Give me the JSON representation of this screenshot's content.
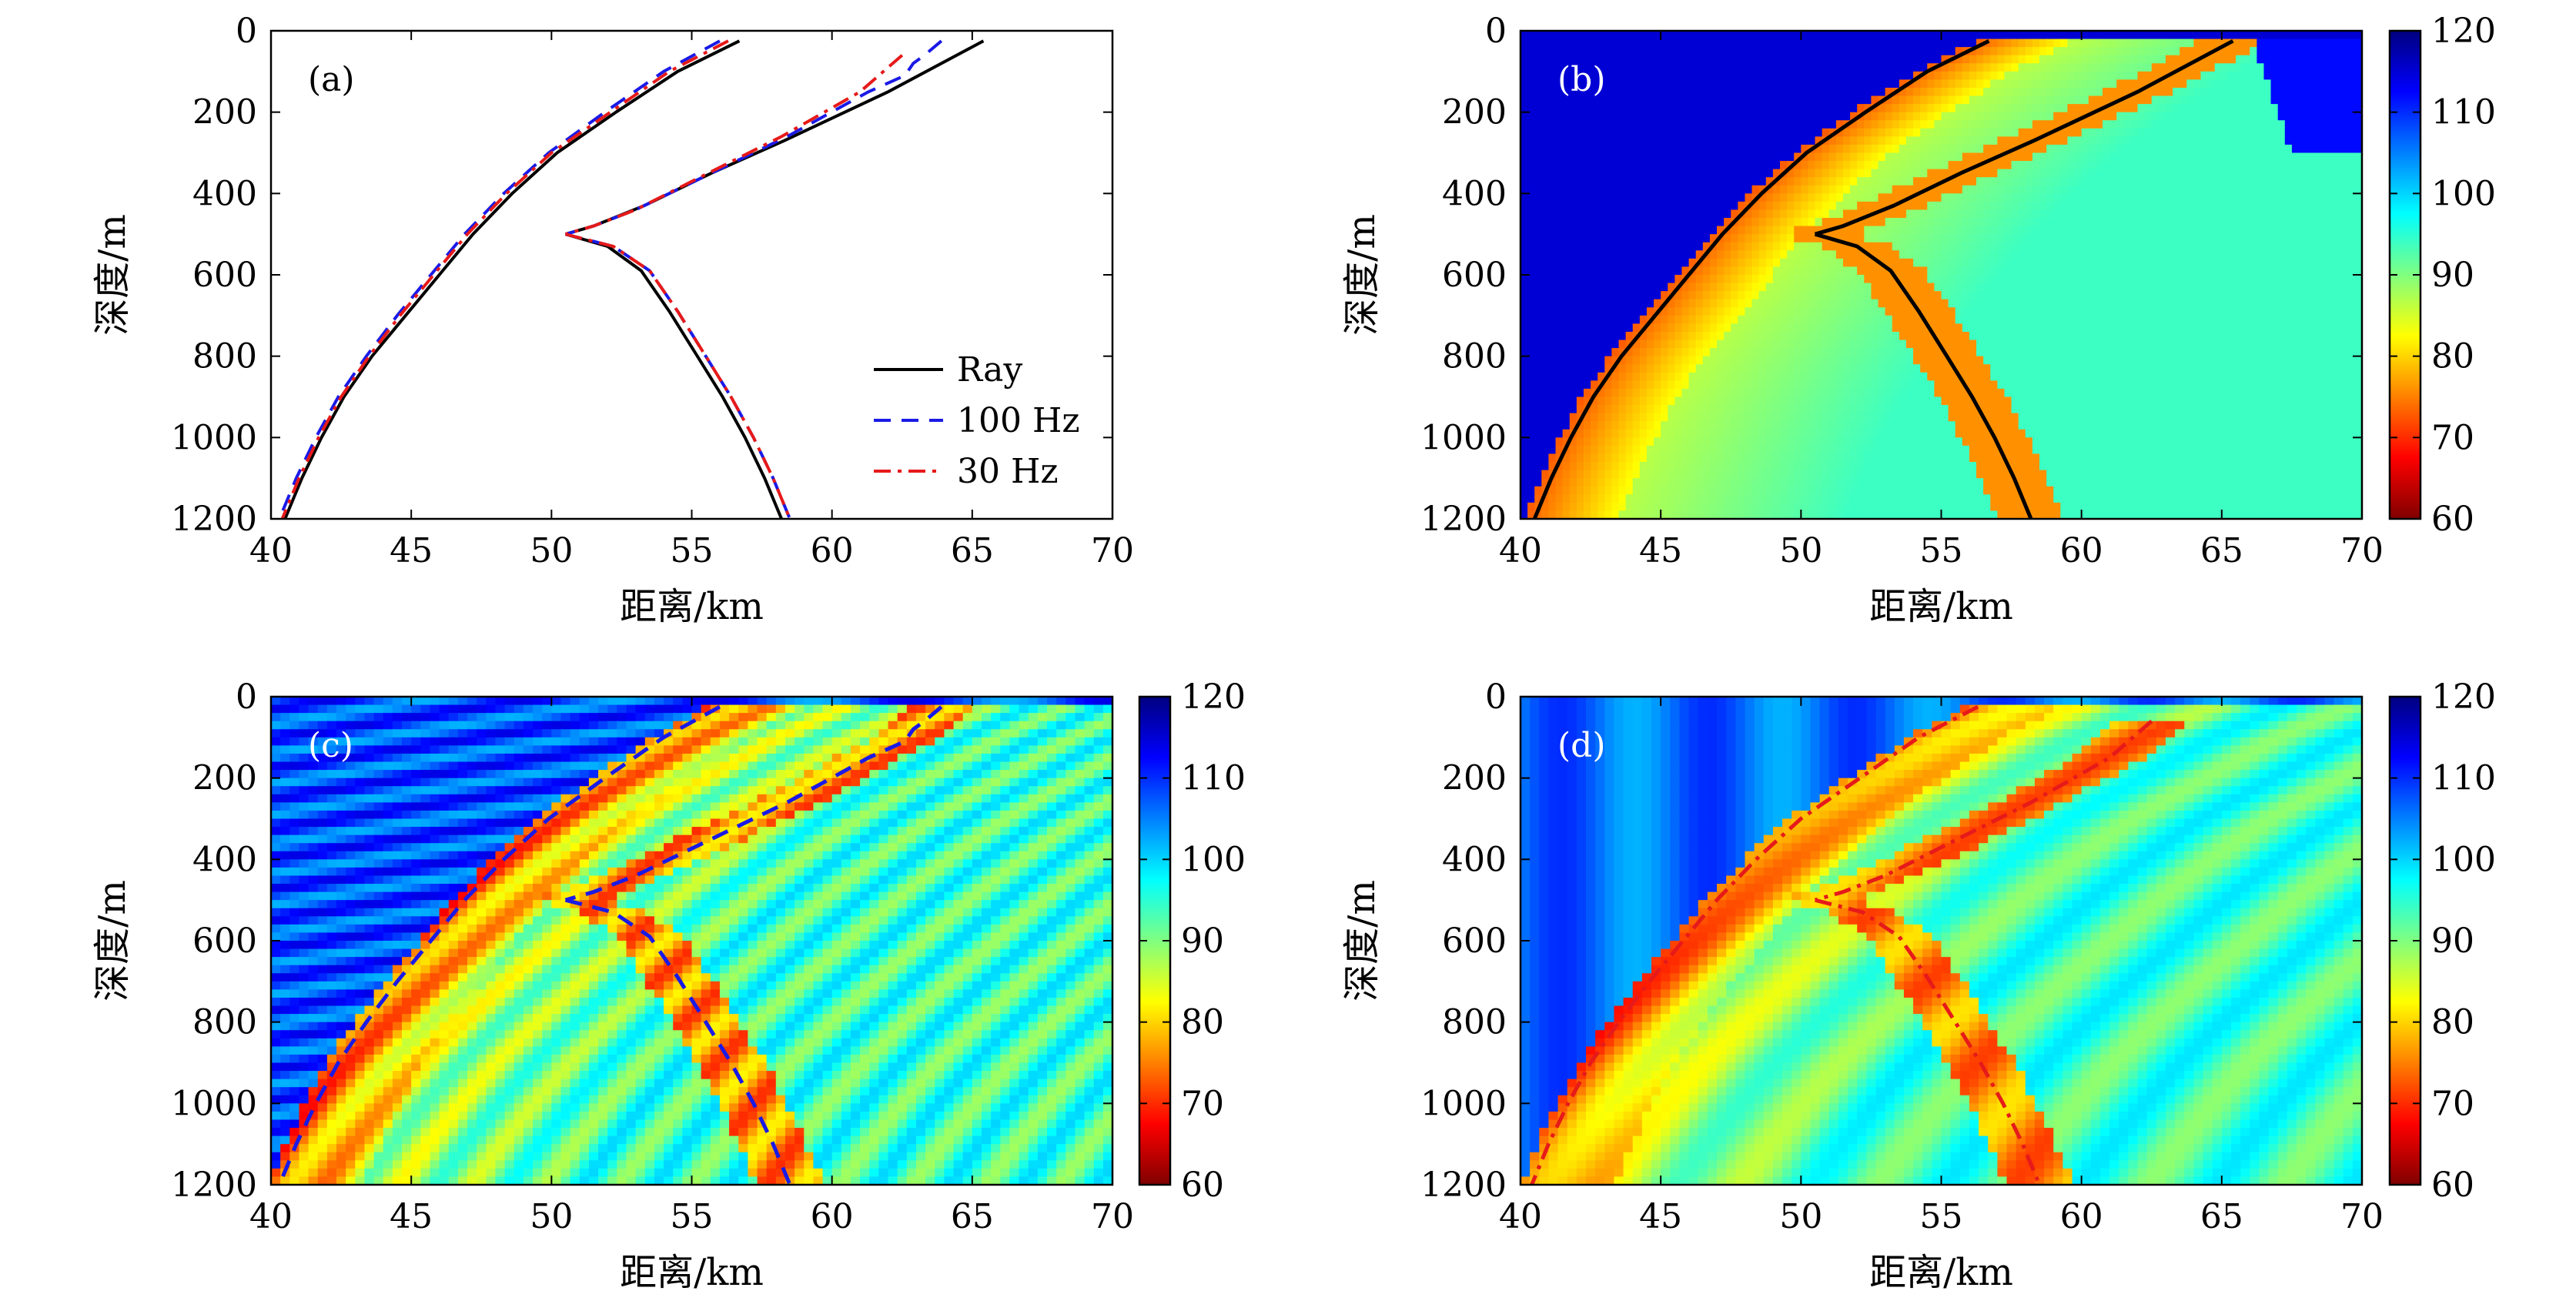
{
  "chart_data": [
    {
      "id": "a",
      "type": "line",
      "panel_label": "(a)",
      "xlabel": "距离/km",
      "ylabel": "深度/m",
      "xlim": [
        40,
        70
      ],
      "ylim": [
        1200,
        0
      ],
      "y_inverted": true,
      "xticks": [
        "40",
        "45",
        "50",
        "55",
        "60",
        "65",
        "70"
      ],
      "yticks": [
        "0",
        "200",
        "400",
        "600",
        "800",
        "1000",
        "1200"
      ],
      "legend": {
        "placement": "bottom-right",
        "entries": [
          "Ray",
          "100 Hz",
          "30 Hz"
        ]
      },
      "series": [
        {
          "name": "Ray",
          "style": "solid",
          "color": "#000000",
          "branches": [
            [
              [
                56.7,
                25
              ],
              [
                54.5,
                100
              ],
              [
                52.3,
                200
              ],
              [
                50.2,
                300
              ],
              [
                48.6,
                400
              ],
              [
                47.2,
                500
              ],
              [
                46.0,
                600
              ],
              [
                44.8,
                700
              ],
              [
                43.6,
                800
              ],
              [
                42.6,
                900
              ],
              [
                41.8,
                1000
              ],
              [
                41.1,
                1100
              ],
              [
                40.5,
                1200
              ]
            ],
            [
              [
                65.4,
                25
              ],
              [
                62.0,
                150
              ],
              [
                58.3,
                270
              ],
              [
                55.7,
                350
              ],
              [
                53.3,
                430
              ],
              [
                51.5,
                480
              ],
              [
                50.5,
                500
              ]
            ],
            [
              [
                50.5,
                500
              ],
              [
                52.0,
                530
              ],
              [
                53.2,
                590
              ],
              [
                54.2,
                690
              ],
              [
                55.2,
                800
              ],
              [
                56.1,
                900
              ],
              [
                56.9,
                1000
              ],
              [
                57.6,
                1100
              ],
              [
                58.2,
                1200
              ]
            ]
          ]
        },
        {
          "name": "100 Hz",
          "style": "dashed",
          "color": "#1a1ae6",
          "branches": [
            [
              [
                56.0,
                25
              ],
              [
                54.0,
                100
              ],
              [
                51.9,
                200
              ],
              [
                49.9,
                300
              ],
              [
                48.3,
                400
              ],
              [
                46.9,
                500
              ],
              [
                45.7,
                600
              ],
              [
                44.5,
                700
              ],
              [
                43.4,
                800
              ],
              [
                42.4,
                900
              ],
              [
                41.6,
                1000
              ],
              [
                40.9,
                1100
              ],
              [
                40.3,
                1200
              ]
            ],
            [
              [
                63.9,
                25
              ],
              [
                63.3,
                60
              ],
              [
                62.9,
                80
              ],
              [
                62.6,
                110
              ],
              [
                61.3,
                150
              ],
              [
                58.4,
                260
              ],
              [
                55.4,
                360
              ],
              [
                53.0,
                440
              ],
              [
                51.5,
                480
              ],
              [
                50.5,
                500
              ]
            ],
            [
              [
                50.5,
                500
              ],
              [
                52.2,
                530
              ],
              [
                53.5,
                590
              ],
              [
                54.5,
                690
              ],
              [
                55.5,
                800
              ],
              [
                56.4,
                900
              ],
              [
                57.2,
                1000
              ],
              [
                57.9,
                1100
              ],
              [
                58.5,
                1200
              ]
            ]
          ]
        },
        {
          "name": "30 Hz",
          "style": "dash-dot",
          "color": "#e61a1a",
          "branches": [
            [
              [
                56.3,
                25
              ],
              [
                54.2,
                100
              ],
              [
                52.1,
                200
              ],
              [
                50.0,
                300
              ],
              [
                48.4,
                400
              ],
              [
                47.0,
                500
              ],
              [
                45.8,
                600
              ],
              [
                44.6,
                700
              ],
              [
                43.5,
                800
              ],
              [
                42.5,
                900
              ],
              [
                41.7,
                1000
              ],
              [
                41.0,
                1100
              ],
              [
                40.4,
                1200
              ]
            ],
            [
              [
                62.5,
                60
              ],
              [
                61.0,
                150
              ],
              [
                58.2,
                260
              ],
              [
                55.3,
                360
              ],
              [
                53.0,
                440
              ],
              [
                51.5,
                480
              ],
              [
                50.5,
                500
              ]
            ],
            [
              [
                50.5,
                500
              ],
              [
                52.2,
                530
              ],
              [
                53.5,
                590
              ],
              [
                54.5,
                690
              ],
              [
                55.5,
                800
              ],
              [
                56.4,
                900
              ],
              [
                57.2,
                1000
              ],
              [
                57.9,
                1100
              ],
              [
                58.5,
                1200
              ]
            ]
          ]
        }
      ]
    },
    {
      "id": "b",
      "type": "heatmap",
      "panel_label": "(b)",
      "xlabel": "距离/km",
      "ylabel": "深度/m",
      "xlim": [
        40,
        70
      ],
      "ylim": [
        1200,
        0
      ],
      "xticks": [
        "40",
        "45",
        "50",
        "55",
        "60",
        "65",
        "70"
      ],
      "yticks": [
        "0",
        "200",
        "400",
        "600",
        "800",
        "1000",
        "1200"
      ],
      "colorbar": {
        "min": 60,
        "max": 120,
        "ticks": [
          "60",
          "70",
          "80",
          "90",
          "100",
          "110",
          "120"
        ],
        "colormap": "jet-reversed"
      },
      "overlay": {
        "series": "Ray",
        "style": "solid",
        "color": "#000000"
      }
    },
    {
      "id": "c",
      "type": "heatmap",
      "panel_label": "(c)",
      "xlabel": "距离/km",
      "ylabel": "深度/m",
      "xlim": [
        40,
        70
      ],
      "ylim": [
        1200,
        0
      ],
      "xticks": [
        "40",
        "45",
        "50",
        "55",
        "60",
        "65",
        "70"
      ],
      "yticks": [
        "0",
        "200",
        "400",
        "600",
        "800",
        "1000",
        "1200"
      ],
      "colorbar": {
        "min": 60,
        "max": 120,
        "ticks": [
          "60",
          "70",
          "80",
          "90",
          "100",
          "110",
          "120"
        ],
        "colormap": "jet-reversed"
      },
      "overlay": {
        "series": "100 Hz",
        "style": "dashed",
        "color": "#1a1ae6"
      }
    },
    {
      "id": "d",
      "type": "heatmap",
      "panel_label": "(d)",
      "xlabel": "距离/km",
      "ylabel": "深度/m",
      "xlim": [
        40,
        70
      ],
      "ylim": [
        1200,
        0
      ],
      "xticks": [
        "40",
        "45",
        "50",
        "55",
        "60",
        "65",
        "70"
      ],
      "yticks": [
        "0",
        "200",
        "400",
        "600",
        "800",
        "1000",
        "1200"
      ],
      "colorbar": {
        "min": 60,
        "max": 120,
        "ticks": [
          "60",
          "70",
          "80",
          "90",
          "100",
          "110",
          "120"
        ],
        "colormap": "jet-reversed"
      },
      "overlay": {
        "series": "30 Hz",
        "style": "dash-dot",
        "color": "#e61a1a"
      }
    }
  ]
}
